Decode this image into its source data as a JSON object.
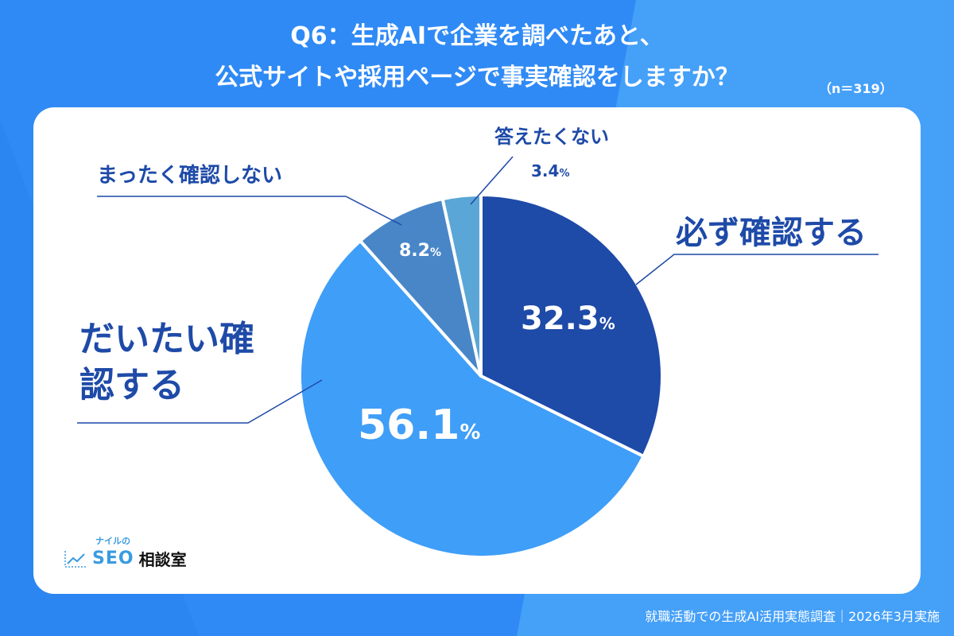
{
  "title_line1": "Q6：生成AIで企業を調べたあと、",
  "title_line2": "公式サイトや採用ページで事実確認をしますか？",
  "sample_size": "（n＝319）",
  "footer": "就職活動での生成AI活用実態調査｜2026年3月実施",
  "logo": {
    "small": "ナイルの",
    "main": "SEO",
    "jp": "相談室"
  },
  "colors": {
    "background": "#2f8af5",
    "text": "#1e4aa8"
  },
  "chart_data": {
    "type": "pie",
    "start": "top",
    "direction": "clockwise",
    "slices": [
      {
        "label": "必ず確認する",
        "value": 32.3,
        "display": "32.3",
        "color": "#1e4aa8"
      },
      {
        "label": "だいたい確認する",
        "value": 56.1,
        "display": "56.1",
        "color": "#3f9ef7"
      },
      {
        "label": "まったく確認しない",
        "value": 8.2,
        "display": "8.2",
        "color": "#4886c8"
      },
      {
        "label": "答えたくない",
        "value": 3.4,
        "display": "3.4",
        "color": "#5aa6d6"
      }
    ],
    "unit": "%"
  }
}
